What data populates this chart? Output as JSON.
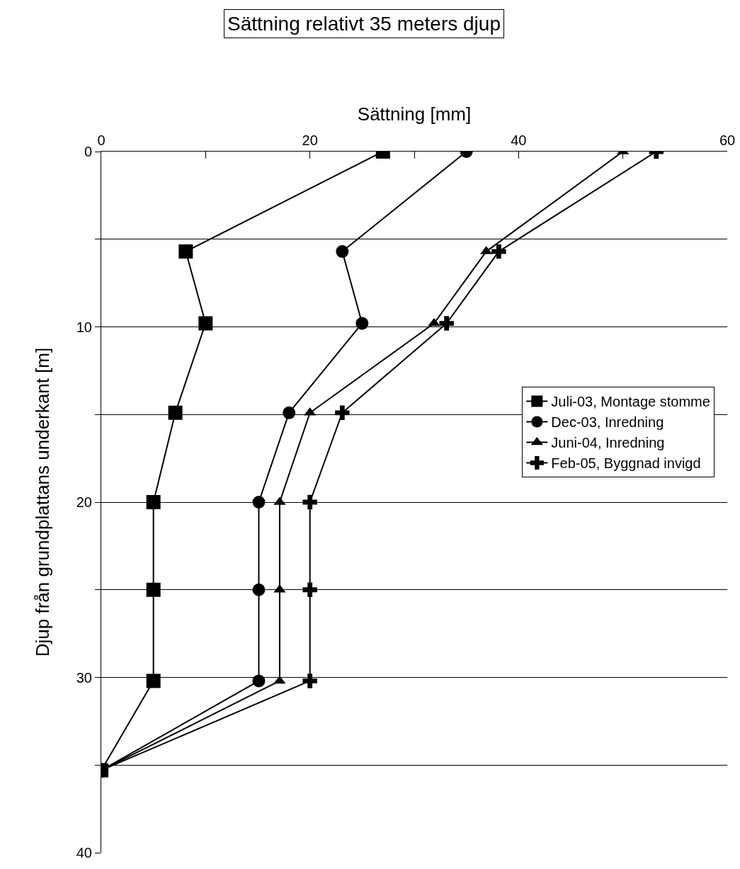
{
  "chart_data": {
    "type": "line",
    "title": "Sättning relativt 35 meters djup",
    "xlabel": "Sättning [mm]",
    "ylabel": "Djup från grundplattans underkant [m]",
    "xlim": [
      0,
      60
    ],
    "xticks": [
      0,
      {
        "value": 10,
        "label": null
      },
      20,
      {
        "value": 30,
        "label": null
      },
      40,
      {
        "value": 50,
        "label": null
      },
      60
    ],
    "ylim": [
      40,
      0
    ],
    "yticks": [
      0,
      {
        "value": 5,
        "label": null
      },
      10,
      {
        "value": 15,
        "label": null
      },
      20,
      {
        "value": 25,
        "label": null
      },
      30,
      {
        "value": 35,
        "label": null
      },
      40
    ],
    "grid": "y",
    "legend": "right",
    "line_style": "solid",
    "series": [
      {
        "name": "Juli-03, Montage stomme",
        "color": "#000000",
        "marker": "square",
        "x": [
          27.0,
          8.1,
          10.0,
          7.1,
          5.0,
          5.0,
          5.0,
          0
        ],
        "values": [
          0,
          5.7,
          9.8,
          14.9,
          20,
          25,
          30.2,
          35.3
        ]
      },
      {
        "name": "Dec-03, Inredning",
        "color": "#000000",
        "marker": "circle",
        "x": [
          35.0,
          23.1,
          25.0,
          18.0,
          15.1,
          15.1,
          15.1,
          0
        ],
        "values": [
          0,
          5.7,
          9.8,
          14.9,
          20,
          25,
          30.2,
          35.3
        ]
      },
      {
        "name": "Juni-04, Inredning",
        "color": "#000000",
        "marker": "triangle",
        "x": [
          50.0,
          36.9,
          31.9,
          20.0,
          17.1,
          17.1,
          17.1,
          0
        ],
        "values": [
          0,
          5.7,
          9.8,
          14.9,
          20,
          25,
          30.2,
          35.3
        ]
      },
      {
        "name": "Feb-05, Byggnad invigd",
        "color": "#000000",
        "marker": "cross",
        "x": [
          53.2,
          38.1,
          33.1,
          23.1,
          20.0,
          20.0,
          20.0,
          0
        ],
        "values": [
          0,
          5.7,
          9.8,
          14.9,
          20,
          25,
          30.2,
          35.3
        ]
      }
    ]
  }
}
